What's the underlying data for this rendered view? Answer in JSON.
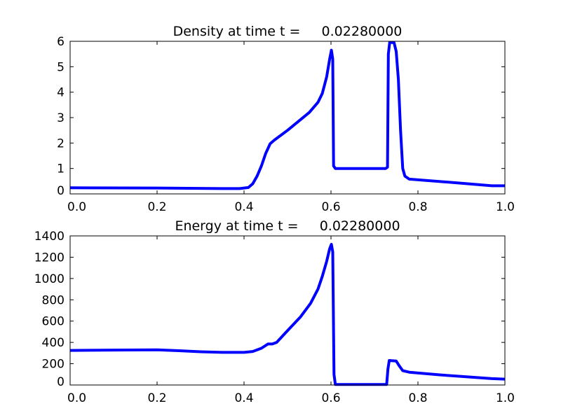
{
  "chart_data": [
    {
      "type": "line",
      "title": "Density at time t =     0.02280000",
      "xlim": [
        0,
        1
      ],
      "ylim": [
        0,
        6
      ],
      "xticks": [
        "0.0",
        "0.2",
        "0.4",
        "0.6",
        "0.8",
        "1.0"
      ],
      "yticks": [
        "0",
        "1",
        "2",
        "3",
        "4",
        "5",
        "6"
      ],
      "color": "#0000ff",
      "x": [
        0,
        0.2,
        0.35,
        0.39,
        0.41,
        0.42,
        0.43,
        0.44,
        0.45,
        0.46,
        0.47,
        0.5,
        0.55,
        0.57,
        0.58,
        0.59,
        0.597,
        0.601,
        0.604,
        0.606,
        0.61,
        0.726,
        0.73,
        0.732,
        0.735,
        0.745,
        0.75,
        0.755,
        0.76,
        0.765,
        0.77,
        0.78,
        0.9,
        0.97,
        1.0
      ],
      "y": [
        0.24,
        0.23,
        0.21,
        0.21,
        0.25,
        0.4,
        0.7,
        1.1,
        1.6,
        1.97,
        2.12,
        2.5,
        3.2,
        3.6,
        3.95,
        4.6,
        5.3,
        5.65,
        5.3,
        1.1,
        1.0,
        1.0,
        1.05,
        5.5,
        5.95,
        5.95,
        5.6,
        4.5,
        2.5,
        1.0,
        0.7,
        0.58,
        0.42,
        0.32,
        0.32
      ]
    },
    {
      "type": "line",
      "title": "Energy at time t =     0.02280000",
      "xlim": [
        0,
        1
      ],
      "ylim": [
        0,
        1400
      ],
      "xticks": [
        "0.0",
        "0.2",
        "0.4",
        "0.6",
        "0.8",
        "1.0"
      ],
      "yticks": [
        "0",
        "200",
        "400",
        "600",
        "800",
        "1000",
        "1200",
        "1400"
      ],
      "color": "#0000ff",
      "x": [
        0,
        0.1,
        0.2,
        0.25,
        0.3,
        0.35,
        0.4,
        0.42,
        0.44,
        0.455,
        0.465,
        0.475,
        0.5,
        0.53,
        0.553,
        0.57,
        0.58,
        0.59,
        0.597,
        0.601,
        0.604,
        0.607,
        0.61,
        0.728,
        0.731,
        0.734,
        0.75,
        0.757,
        0.765,
        0.78,
        0.85,
        0.9,
        0.97,
        1.0
      ],
      "y": [
        325,
        328,
        330,
        322,
        312,
        306,
        306,
        315,
        345,
        385,
        385,
        400,
        510,
        640,
        767,
        900,
        1020,
        1160,
        1280,
        1321,
        1250,
        100,
        5,
        5,
        150,
        230,
        225,
        180,
        135,
        120,
        95,
        80,
        60,
        55
      ]
    }
  ]
}
